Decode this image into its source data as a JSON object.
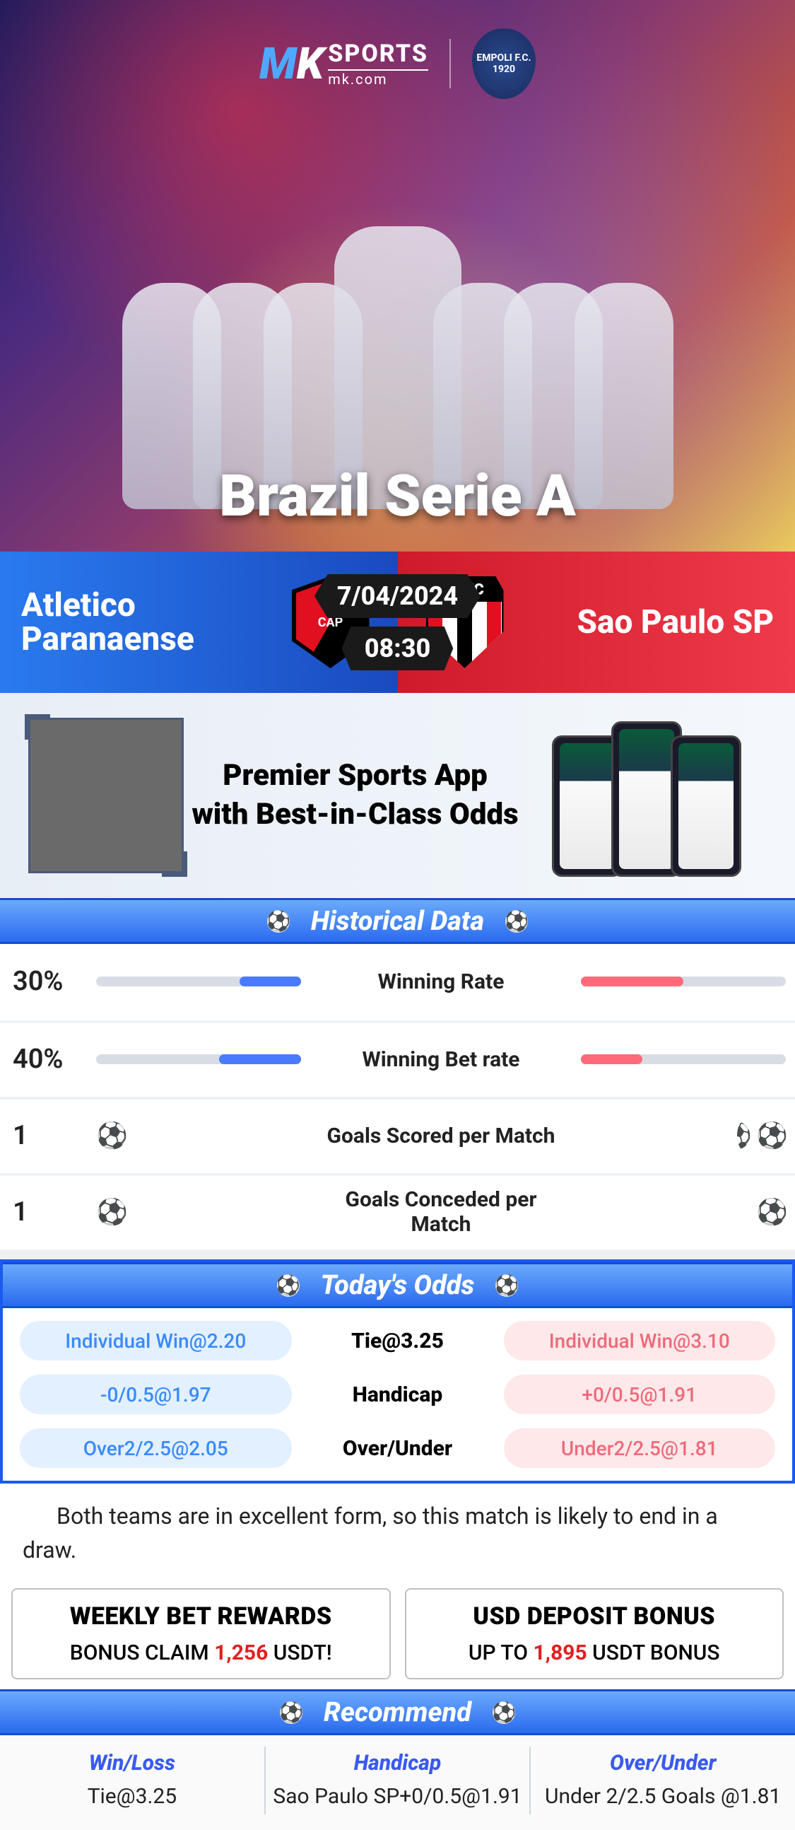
{
  "hero": {
    "logo_mk": "MK",
    "logo_sports": "SPORTS",
    "logo_sub": "mk.com",
    "badge_text": "EMPOLI F.C.\n1920",
    "title": "Brazil Serie A"
  },
  "match": {
    "left_team": "Atletico Paranaense",
    "left_crest_text": "CAP",
    "right_team": "Sao Paulo SP",
    "right_crest_text": "SPFC",
    "date": "7/04/2024",
    "time": "08:30"
  },
  "promo": {
    "line1": "Premier Sports App",
    "line2": "with Best-in-Class Odds"
  },
  "sections": {
    "historical": "Historical Data",
    "odds": "Today's Odds",
    "recommend": "Recommend"
  },
  "hist": {
    "rows": [
      {
        "label": "Winning Rate",
        "left_val": "30%",
        "right_val": "50%",
        "left_pct": 30,
        "right_pct": 50,
        "type": "bar"
      },
      {
        "label": "Winning Bet rate",
        "left_val": "40%",
        "right_val": "30%",
        "left_pct": 40,
        "right_pct": 30,
        "type": "bar"
      },
      {
        "label": "Goals Scored per Match",
        "left_val": "1",
        "right_val": "1.4",
        "left_balls": 1,
        "right_balls": 1.5,
        "type": "balls"
      },
      {
        "label": "Goals Conceded per Match",
        "left_val": "1",
        "right_val": "0.9",
        "left_balls": 1,
        "right_balls": 1,
        "type": "balls"
      }
    ],
    "colors": {
      "blue": "#4a7aff",
      "red": "#ff6a7a",
      "track": "#d8dce4"
    }
  },
  "odds": {
    "rows": [
      {
        "left": "Individual Win@2.20",
        "mid": "Tie@3.25",
        "right": "Individual Win@3.10"
      },
      {
        "left": "-0/0.5@1.97",
        "mid": "Handicap",
        "right": "+0/0.5@1.91"
      },
      {
        "left": "Over2/2.5@2.05",
        "mid": "Over/Under",
        "right": "Under2/2.5@1.81"
      }
    ]
  },
  "analysis": "Both teams are in excellent form, so this match is likely to end in a draw.",
  "bonus": [
    {
      "title": "WEEKLY BET REWARDS",
      "pre": "BONUS CLAIM ",
      "amt": "1,256",
      "post": " USDT!"
    },
    {
      "title": "USD DEPOSIT BONUS",
      "pre": "UP TO ",
      "amt": "1,895",
      "post": " USDT BONUS"
    }
  ],
  "reco": [
    {
      "head": "Win/Loss",
      "body": "Tie@3.25"
    },
    {
      "head": "Handicap",
      "body": "Sao Paulo SP+0/0.5@1.91"
    },
    {
      "head": "Over/Under",
      "body": "Under 2/2.5 Goals @1.81"
    }
  ]
}
